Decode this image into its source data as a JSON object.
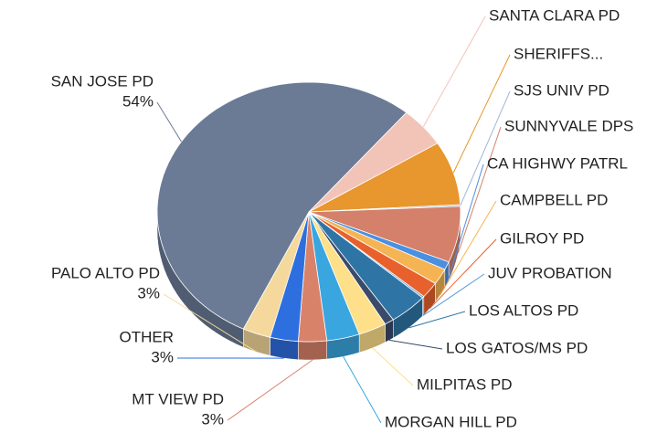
{
  "chart_data": {
    "type": "pie3d",
    "categories": [
      "SANTA CLARA PD",
      "SHERIFFS...",
      "SJS UNIV PD",
      "SUNNYVALE DPS",
      "CA HIGHWY PATRL",
      "CAMPBELL PD",
      "GILROY PD",
      "JUV PROBATION",
      "LOS ALTOS PD",
      "LOS GATOS/MS PD",
      "MILPITAS PD",
      "MORGAN HILL PD",
      "MT VIEW PD",
      "OTHER",
      "PALO ALTO PD",
      "SAN JOSE PD"
    ],
    "values": [
      5,
      8,
      0.2,
      7,
      1,
      2,
      2,
      0.2,
      4.1,
      1,
      3,
      3.5,
      3,
      3,
      3,
      54
    ],
    "value_labels": [
      null,
      null,
      null,
      null,
      null,
      null,
      null,
      null,
      null,
      null,
      null,
      null,
      "3%",
      "3%",
      "3%",
      "54%"
    ],
    "colors": [
      "#f2c4b8",
      "#e8962e",
      "#9fb8d8",
      "#d4806a",
      "#4a8fe0",
      "#f5b454",
      "#e8602c",
      "#5b9bd5",
      "#2e75a6",
      "#3a4a6a",
      "#ffe08a",
      "#3aa6e0",
      "#d9826a",
      "#2e6fe0",
      "#f5d99c",
      "#6b7b96"
    ]
  }
}
